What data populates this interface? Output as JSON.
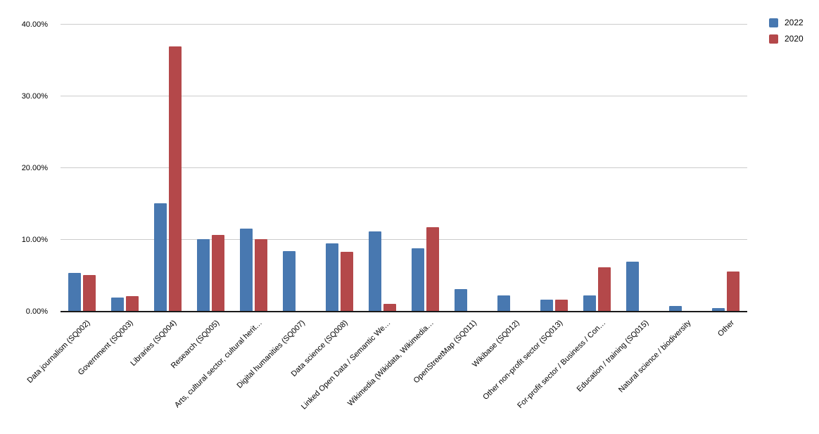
{
  "chart_data": {
    "type": "bar",
    "title": "",
    "xlabel": "",
    "ylabel": "",
    "ylim": [
      0,
      40
    ],
    "grid": true,
    "legend_position": "top-right",
    "yticks": [
      {
        "value": 0,
        "label": "0.00%"
      },
      {
        "value": 10,
        "label": "10.00%"
      },
      {
        "value": 20,
        "label": "20.00%"
      },
      {
        "value": 30,
        "label": "30.00%"
      },
      {
        "value": 40,
        "label": "40.00%"
      }
    ],
    "categories": [
      "Data journalism (SQ002)",
      "Government (SQ003)",
      "Libraries (SQ004)",
      "Research (SQ005)",
      "Arts, cultural sector, cultural herit…",
      "Digital humanities (SQ007)",
      "Data science (SQ008)",
      "Linked Open Data / Semantic We…",
      "Wikimedia (Wikidata, Wikimedia…",
      "OpenStreetMap (SQ011)",
      "Wikibase (SQ012)",
      "Other non-profit sector (SQ013)",
      "For-profit sector / Business / Con…",
      "Education / training (SQ015)",
      "Natural science / biodiversity",
      "Other"
    ],
    "series": [
      {
        "name": "2022",
        "color": "#4878b0",
        "values": [
          5.4,
          2.0,
          15.1,
          10.1,
          11.6,
          8.4,
          9.5,
          11.2,
          8.8,
          3.1,
          2.3,
          1.7,
          2.3,
          7.0,
          0.8,
          0.5
        ]
      },
      {
        "name": "2020",
        "color": "#b4484a",
        "values": [
          5.1,
          2.2,
          37.0,
          10.7,
          10.1,
          0,
          8.3,
          1.1,
          11.8,
          0,
          0,
          1.7,
          6.2,
          0,
          0,
          5.6
        ]
      }
    ],
    "colors": {
      "gridline": "#cccccc",
      "axis_line": "#1a1a1a",
      "text": "#000000",
      "background": "#ffffff"
    }
  }
}
